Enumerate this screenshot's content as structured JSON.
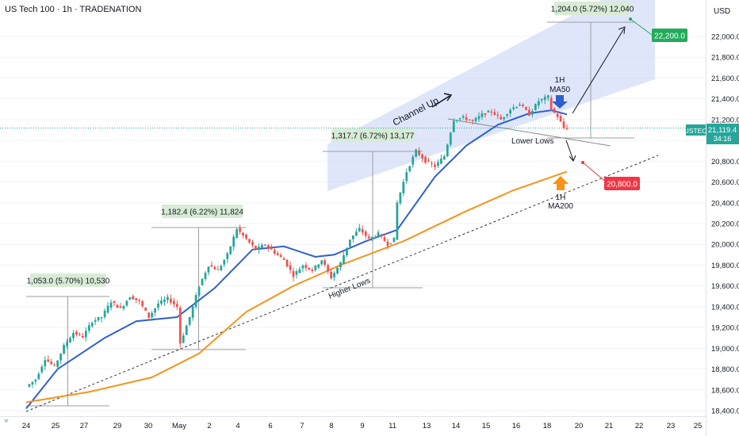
{
  "header": {
    "title": "US Tech 100 · 1h · TRADENATION",
    "currency": "USD"
  },
  "symbol": {
    "ticker": "USTEC",
    "last_price": "21,119.4",
    "countdown": "34:16"
  },
  "colors": {
    "up": "#26a69a",
    "down": "#ef5350",
    "ma50": "#2f5fcf",
    "ma200": "#f7931a",
    "channel": "#c9d5f7",
    "label_green": "#22ab5a",
    "label_red": "#f23645",
    "measure_bg": "#d8ecd5"
  },
  "chart_data": {
    "type": "candlestick",
    "title": "US Tech 100 · 1h · TRADENATION",
    "ylim": [
      18400,
      22200
    ],
    "yticks": [
      18400,
      18600,
      18800,
      19000,
      19200,
      19400,
      19600,
      19800,
      20000,
      20200,
      20400,
      20600,
      20800,
      21000,
      21200,
      21400,
      21600,
      21800,
      22000
    ],
    "ytick_labels": [
      "18,400.0",
      "18,600.0",
      "18,800.0",
      "19,000.0",
      "19,200.0",
      "19,400.0",
      "19,600.0",
      "19,800.0",
      "20,000.0",
      "20,200.0",
      "20,400.0",
      "20,600.0",
      "20,800.0",
      "21,000.0",
      "21,200.0",
      "21,400.0",
      "21,600.0",
      "21,800.0",
      "22,000.0"
    ],
    "xticks": [
      "24",
      "25",
      "27",
      "29",
      "30",
      "May",
      "2",
      "4",
      "6",
      "7",
      "8",
      "9",
      "11",
      "13",
      "14",
      "15",
      "16",
      "18",
      "20",
      "21",
      "22",
      "23",
      "25"
    ],
    "price_path": [
      [
        0,
        18630
      ],
      [
        3,
        18700
      ],
      [
        6,
        18900
      ],
      [
        9,
        18820
      ],
      [
        12,
        19020
      ],
      [
        15,
        19150
      ],
      [
        18,
        19110
      ],
      [
        21,
        19260
      ],
      [
        24,
        19300
      ],
      [
        27,
        19450
      ],
      [
        30,
        19380
      ],
      [
        33,
        19500
      ],
      [
        36,
        19450
      ],
      [
        39,
        19300
      ],
      [
        42,
        19430
      ],
      [
        45,
        19480
      ],
      [
        48,
        19400
      ],
      [
        49,
        19050
      ],
      [
        52,
        19300
      ],
      [
        55,
        19600
      ],
      [
        58,
        19800
      ],
      [
        61,
        19750
      ],
      [
        64,
        19900
      ],
      [
        67,
        20150
      ],
      [
        70,
        20050
      ],
      [
        73,
        19950
      ],
      [
        76,
        20000
      ],
      [
        79,
        19920
      ],
      [
        82,
        19850
      ],
      [
        85,
        19700
      ],
      [
        88,
        19800
      ],
      [
        91,
        19750
      ],
      [
        94,
        19850
      ],
      [
        97,
        19680
      ],
      [
        100,
        19820
      ],
      [
        103,
        20050
      ],
      [
        106,
        20150
      ],
      [
        109,
        20050
      ],
      [
        112,
        20100
      ],
      [
        115,
        20000
      ],
      [
        117,
        20050
      ],
      [
        118,
        20400
      ],
      [
        121,
        20700
      ],
      [
        124,
        20900
      ],
      [
        127,
        20800
      ],
      [
        130,
        20750
      ],
      [
        133,
        20850
      ],
      [
        136,
        21200
      ],
      [
        139,
        21220
      ],
      [
        142,
        21180
      ],
      [
        145,
        21250
      ],
      [
        148,
        21280
      ],
      [
        151,
        21200
      ],
      [
        154,
        21300
      ],
      [
        157,
        21350
      ],
      [
        160,
        21250
      ],
      [
        163,
        21380
      ],
      [
        166,
        21420
      ],
      [
        167,
        21300
      ],
      [
        169,
        21230
      ],
      [
        171,
        21120
      ],
      [
        172,
        21119.4
      ]
    ],
    "series": [
      {
        "name": "1H MA50",
        "points": [
          [
            0,
            18420
          ],
          [
            10,
            18800
          ],
          [
            25,
            19100
          ],
          [
            35,
            19260
          ],
          [
            48,
            19300
          ],
          [
            60,
            19580
          ],
          [
            72,
            19950
          ],
          [
            82,
            19980
          ],
          [
            92,
            19880
          ],
          [
            98,
            19900
          ],
          [
            108,
            20030
          ],
          [
            118,
            20140
          ],
          [
            130,
            20650
          ],
          [
            140,
            20950
          ],
          [
            150,
            21150
          ],
          [
            160,
            21260
          ],
          [
            167,
            21290
          ],
          [
            172,
            21250
          ]
        ]
      },
      {
        "name": "1H MA200",
        "points": [
          [
            0,
            18480
          ],
          [
            20,
            18580
          ],
          [
            40,
            18720
          ],
          [
            55,
            18950
          ],
          [
            70,
            19350
          ],
          [
            85,
            19600
          ],
          [
            100,
            19800
          ],
          [
            120,
            20030
          ],
          [
            140,
            20320
          ],
          [
            155,
            20520
          ],
          [
            172,
            20700
          ]
        ]
      }
    ],
    "annotations": {
      "measures": [
        "1,053.0 (5.70%) 10,530",
        "1,182.4 (6.22%) 11,824",
        "1,317.7 (6.72%) 13,177",
        "1,204.0 (5.72%) 12,040"
      ],
      "labels": [
        "Channel Up",
        "Higher Lows",
        "Lower Lows",
        "1H",
        "MA50",
        "1H",
        "MA200"
      ],
      "targets": [
        "22,200.0",
        "20,800.0"
      ]
    }
  }
}
